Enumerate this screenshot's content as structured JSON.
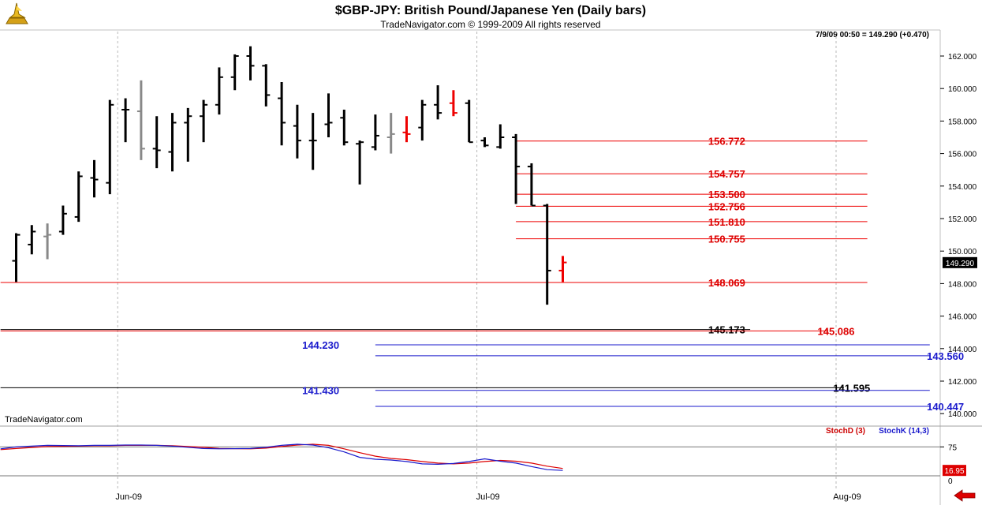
{
  "header": {
    "title": "$GBP-JPY:  British Pound/Japanese Yen  (Daily bars)",
    "subtitle": "TradeNavigator.com © 1999-2009 All rights reserved",
    "quote": "7/9/09 00:50 = 149.290 (+0.470)",
    "watermark": "TradeNavigator.com"
  },
  "colors": {
    "up": "#000000",
    "down_red": "#ee0000",
    "neutral": "#888888",
    "blue": "#1a1acc"
  },
  "chart_data": [
    {
      "type": "ohlc",
      "ylim": [
        139,
        163.5
      ],
      "yticks": [
        "162.000",
        "160.000",
        "158.000",
        "156.000",
        "154.000",
        "152.000",
        "150.000",
        "148.000",
        "146.000",
        "144.000",
        "142.000",
        "140.000"
      ],
      "last_price_label": "149.290",
      "last_price": 149.29,
      "xlabels": [
        {
          "label": "Jun-09",
          "bar": 6.5
        },
        {
          "label": "Jul-09",
          "bar": 29.5
        },
        {
          "label": "Aug-09",
          "bar": 52.5
        }
      ],
      "bars": [
        {
          "o": 149.4,
          "h": 151.1,
          "l": 148.1,
          "c": 151.0,
          "color": "up"
        },
        {
          "o": 150.4,
          "h": 151.6,
          "l": 149.8,
          "c": 151.2,
          "color": "up"
        },
        {
          "o": 150.9,
          "h": 151.7,
          "l": 149.5,
          "c": 151.0,
          "color": "neutral"
        },
        {
          "o": 151.2,
          "h": 152.8,
          "l": 151.0,
          "c": 152.3,
          "color": "up"
        },
        {
          "o": 152.1,
          "h": 154.9,
          "l": 151.8,
          "c": 154.6,
          "color": "up"
        },
        {
          "o": 154.5,
          "h": 155.6,
          "l": 153.3,
          "c": 154.4,
          "color": "up"
        },
        {
          "o": 154.2,
          "h": 159.3,
          "l": 153.5,
          "c": 159.0,
          "color": "up"
        },
        {
          "o": 158.7,
          "h": 159.4,
          "l": 156.7,
          "c": 158.7,
          "color": "up"
        },
        {
          "o": 158.6,
          "h": 160.5,
          "l": 155.6,
          "c": 156.3,
          "color": "neutral"
        },
        {
          "o": 156.3,
          "h": 158.3,
          "l": 155.1,
          "c": 156.2,
          "color": "up"
        },
        {
          "o": 156.1,
          "h": 158.5,
          "l": 154.9,
          "c": 157.9,
          "color": "up"
        },
        {
          "o": 157.9,
          "h": 158.8,
          "l": 155.5,
          "c": 158.3,
          "color": "up"
        },
        {
          "o": 158.3,
          "h": 159.3,
          "l": 156.7,
          "c": 159.0,
          "color": "up"
        },
        {
          "o": 159.0,
          "h": 161.3,
          "l": 158.4,
          "c": 160.7,
          "color": "up"
        },
        {
          "o": 160.7,
          "h": 162.1,
          "l": 159.9,
          "c": 162.0,
          "color": "up"
        },
        {
          "o": 162.0,
          "h": 162.6,
          "l": 160.5,
          "c": 161.4,
          "color": "up"
        },
        {
          "o": 161.4,
          "h": 161.5,
          "l": 158.9,
          "c": 159.6,
          "color": "up"
        },
        {
          "o": 159.4,
          "h": 160.4,
          "l": 156.5,
          "c": 157.9,
          "color": "up"
        },
        {
          "o": 157.7,
          "h": 159.0,
          "l": 155.7,
          "c": 156.8,
          "color": "up"
        },
        {
          "o": 156.8,
          "h": 158.5,
          "l": 155.0,
          "c": 156.8,
          "color": "up"
        },
        {
          "o": 157.8,
          "h": 159.7,
          "l": 157.0,
          "c": 157.9,
          "color": "up"
        },
        {
          "o": 158.2,
          "h": 158.7,
          "l": 156.5,
          "c": 156.7,
          "color": "up"
        },
        {
          "o": 156.6,
          "h": 156.8,
          "l": 154.1,
          "c": 156.7,
          "color": "up"
        },
        {
          "o": 156.4,
          "h": 158.4,
          "l": 156.2,
          "c": 157.1,
          "color": "up"
        },
        {
          "o": 157.0,
          "h": 158.5,
          "l": 156.0,
          "c": 157.2,
          "color": "neutral"
        },
        {
          "o": 157.3,
          "h": 158.3,
          "l": 156.7,
          "c": 157.2,
          "color": "down_red"
        },
        {
          "o": 157.6,
          "h": 159.3,
          "l": 156.8,
          "c": 159.0,
          "color": "up"
        },
        {
          "o": 159.0,
          "h": 160.2,
          "l": 158.1,
          "c": 158.5,
          "color": "up"
        },
        {
          "o": 159.1,
          "h": 159.9,
          "l": 158.3,
          "c": 158.5,
          "color": "down_red"
        },
        {
          "o": 159.1,
          "h": 159.3,
          "l": 156.7,
          "c": 156.7,
          "color": "up"
        },
        {
          "o": 156.8,
          "h": 157.0,
          "l": 156.4,
          "c": 156.5,
          "color": "up"
        },
        {
          "o": 156.4,
          "h": 157.8,
          "l": 156.3,
          "c": 157.0,
          "color": "up"
        },
        {
          "o": 157.0,
          "h": 157.2,
          "l": 152.9,
          "c": 155.2,
          "color": "up"
        },
        {
          "o": 155.2,
          "h": 155.4,
          "l": 152.8,
          "c": 152.8,
          "color": "up"
        },
        {
          "o": 152.8,
          "h": 152.9,
          "l": 146.7,
          "c": 148.8,
          "color": "up"
        },
        {
          "o": 148.8,
          "h": 149.7,
          "l": 148.1,
          "c": 149.3,
          "color": "down_red"
        }
      ],
      "levels": [
        {
          "label": "156.772",
          "value": 156.772,
          "color": "down_red",
          "x1": 32.0,
          "x2": 54.5,
          "label_bar": 45.5
        },
        {
          "label": "154.757",
          "value": 154.757,
          "color": "down_red",
          "x1": 32.0,
          "x2": 54.5,
          "label_bar": 45.5
        },
        {
          "label": "153.500",
          "value": 153.5,
          "color": "down_red",
          "x1": 32.0,
          "x2": 54.5,
          "label_bar": 45.5
        },
        {
          "label": "152.756",
          "value": 152.756,
          "color": "down_red",
          "x1": 32.0,
          "x2": 54.5,
          "label_bar": 45.5
        },
        {
          "label": "151.810",
          "value": 151.81,
          "color": "down_red",
          "x1": 32.0,
          "x2": 54.5,
          "label_bar": 45.5
        },
        {
          "label": "150.755",
          "value": 150.755,
          "color": "down_red",
          "x1": 32.0,
          "x2": 54.5,
          "label_bar": 45.5
        },
        {
          "label": "148.069",
          "value": 148.069,
          "color": "down_red",
          "x1": -1.0,
          "x2": 54.5,
          "label_bar": 45.5
        },
        {
          "label": "145.173",
          "value": 145.173,
          "color": "up",
          "x1": -1.0,
          "x2": 47.0,
          "label_bar": 45.5
        },
        {
          "label": "145.086",
          "value": 145.086,
          "color": "down_red",
          "x1": -1.0,
          "x2": 52.0,
          "label_bar": 52.5
        },
        {
          "label": "144.230",
          "value": 144.23,
          "color": "blue",
          "x1": 23.0,
          "x2": 58.5,
          "label_bar": 19.5
        },
        {
          "label": "143.560",
          "value": 143.56,
          "color": "blue",
          "x1": 23.0,
          "x2": 58.5,
          "label_bar": 59.5
        },
        {
          "label": "141.595",
          "value": 141.595,
          "color": "up",
          "x1": -1.0,
          "x2": 53.0,
          "label_bar": 53.5
        },
        {
          "label": "141.430",
          "value": 141.43,
          "color": "blue",
          "x1": 23.0,
          "x2": 58.5,
          "label_bar": 19.5
        },
        {
          "label": "140.447",
          "value": 140.447,
          "color": "blue",
          "x1": 23.0,
          "x2": 58.5,
          "label_bar": 59.5
        }
      ]
    },
    {
      "type": "line",
      "ylim": [
        0,
        100
      ],
      "yticks": [
        "75"
      ],
      "reference_line": 0,
      "last_value_label": "16.95",
      "legend": [
        "StochD (3)",
        "StochK (14,3)"
      ],
      "series": [
        {
          "name": "StochD (3)",
          "color": "down_red",
          "x": [
            -1,
            0,
            2,
            4,
            5,
            6,
            7,
            8,
            9,
            10,
            12,
            13,
            15,
            16,
            17,
            18,
            19,
            20,
            21,
            22,
            23,
            24,
            25,
            26,
            27,
            28,
            29,
            30,
            31,
            32,
            33,
            34,
            35
          ],
          "values": [
            68,
            71,
            76,
            77,
            78,
            78,
            79,
            79,
            79,
            78,
            74,
            71,
            70,
            72,
            76,
            80,
            82,
            79,
            70,
            60,
            51,
            45,
            42,
            37,
            33,
            31,
            33,
            37,
            40,
            38,
            33,
            25,
            19
          ]
        },
        {
          "name": "StochK (14,3)",
          "color": "blue",
          "x": [
            -1,
            0,
            2,
            4,
            5,
            6,
            7,
            8,
            9,
            10,
            12,
            13,
            15,
            16,
            17,
            18,
            19,
            20,
            21,
            22,
            23,
            24,
            25,
            26,
            27,
            28,
            29,
            30,
            31,
            32,
            33,
            34,
            35
          ],
          "values": [
            70,
            75,
            79,
            78,
            79,
            79,
            80,
            80,
            79,
            77,
            71,
            70,
            71,
            74,
            79,
            82,
            80,
            73,
            62,
            48,
            43,
            41,
            37,
            31,
            30,
            32,
            37,
            44,
            38,
            33,
            24,
            16,
            14
          ]
        }
      ]
    }
  ]
}
